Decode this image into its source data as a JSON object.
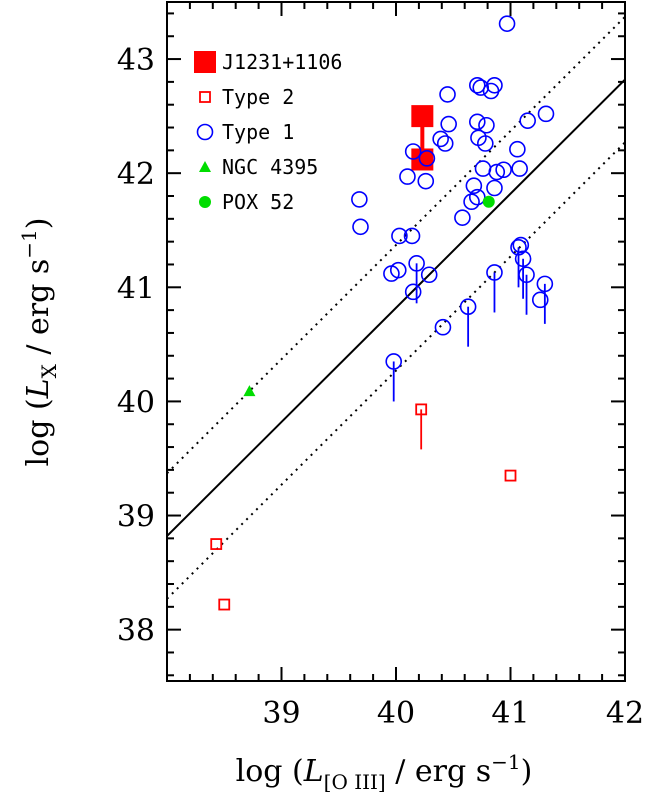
{
  "chart_data": {
    "type": "scatter",
    "xlabel": {
      "prefix": "log (",
      "symbol": "L",
      "sub": "[O III]",
      "suffix": " / erg s",
      "sup": "−1",
      "end": ")"
    },
    "ylabel": {
      "prefix": "log (",
      "symbol": "L",
      "sub": "X",
      "suffix": " / erg s",
      "sup": "−1",
      "end": ")"
    },
    "xlim": [
      38,
      42
    ],
    "ylim": [
      37.55,
      43.5
    ],
    "x_ticks": [
      39,
      40,
      41,
      42
    ],
    "y_ticks": [
      38,
      39,
      40,
      41,
      42,
      43
    ],
    "grid": false,
    "legend_position": "top-left",
    "colors": {
      "red": "#ff0000",
      "blue": "#0000ff",
      "green": "#00dd00",
      "black": "#000000"
    },
    "relation": {
      "slope": 1.0,
      "intercept": 0.82,
      "scatter": 0.55
    },
    "series": [
      {
        "name": "J1231+1106",
        "marker": "filled-square",
        "color": "#ff0000",
        "points": [
          {
            "x": 40.23,
            "y": 42.5
          },
          {
            "x": 40.23,
            "y": 42.12
          }
        ]
      },
      {
        "name": "Type 2",
        "marker": "open-square",
        "color": "#ff0000",
        "points": [
          {
            "x": 38.43,
            "y": 38.75
          },
          {
            "x": 38.5,
            "y": 38.22
          },
          {
            "x": 40.22,
            "y": 39.93,
            "upper_limit": true
          },
          {
            "x": 41.0,
            "y": 39.35
          }
        ]
      },
      {
        "name": "Type 1",
        "marker": "open-circle",
        "color": "#0000ff",
        "points": [
          {
            "x": 40.97,
            "y": 43.31
          },
          {
            "x": 40.45,
            "y": 42.69
          },
          {
            "x": 40.71,
            "y": 42.77
          },
          {
            "x": 40.74,
            "y": 42.75
          },
          {
            "x": 40.83,
            "y": 42.72
          },
          {
            "x": 40.86,
            "y": 42.77
          },
          {
            "x": 40.39,
            "y": 42.3
          },
          {
            "x": 40.43,
            "y": 42.26
          },
          {
            "x": 40.46,
            "y": 42.43
          },
          {
            "x": 40.71,
            "y": 42.45
          },
          {
            "x": 40.79,
            "y": 42.42
          },
          {
            "x": 40.72,
            "y": 42.31
          },
          {
            "x": 40.78,
            "y": 42.26
          },
          {
            "x": 41.15,
            "y": 42.46
          },
          {
            "x": 41.31,
            "y": 42.52
          },
          {
            "x": 40.15,
            "y": 42.19
          },
          {
            "x": 40.27,
            "y": 42.13
          },
          {
            "x": 40.1,
            "y": 41.97
          },
          {
            "x": 40.26,
            "y": 41.93
          },
          {
            "x": 40.76,
            "y": 42.04
          },
          {
            "x": 40.88,
            "y": 42.01
          },
          {
            "x": 40.94,
            "y": 42.03
          },
          {
            "x": 41.06,
            "y": 42.21
          },
          {
            "x": 41.08,
            "y": 42.04
          },
          {
            "x": 40.68,
            "y": 41.89
          },
          {
            "x": 40.86,
            "y": 41.87
          },
          {
            "x": 40.66,
            "y": 41.75
          },
          {
            "x": 40.71,
            "y": 41.79
          },
          {
            "x": 40.58,
            "y": 41.61
          },
          {
            "x": 39.68,
            "y": 41.77
          },
          {
            "x": 39.69,
            "y": 41.53
          },
          {
            "x": 40.03,
            "y": 41.45
          },
          {
            "x": 40.14,
            "y": 41.45
          },
          {
            "x": 40.18,
            "y": 41.21,
            "upper_limit": true
          },
          {
            "x": 39.96,
            "y": 41.12
          },
          {
            "x": 40.02,
            "y": 41.15
          },
          {
            "x": 40.29,
            "y": 41.11
          },
          {
            "x": 40.15,
            "y": 40.96
          },
          {
            "x": 40.41,
            "y": 40.65
          },
          {
            "x": 41.07,
            "y": 41.35,
            "upper_limit": true
          },
          {
            "x": 41.09,
            "y": 41.37
          },
          {
            "x": 41.11,
            "y": 41.25,
            "upper_limit": true
          },
          {
            "x": 41.14,
            "y": 41.11,
            "upper_limit": true
          },
          {
            "x": 40.86,
            "y": 41.13,
            "upper_limit": true
          },
          {
            "x": 41.3,
            "y": 41.03,
            "upper_limit": true
          },
          {
            "x": 41.26,
            "y": 40.89
          },
          {
            "x": 40.63,
            "y": 40.83,
            "upper_limit": true
          },
          {
            "x": 39.98,
            "y": 40.35,
            "upper_limit": true
          }
        ]
      },
      {
        "name": "NGC 4395",
        "marker": "filled-triangle",
        "color": "#00dd00",
        "points": [
          {
            "x": 38.72,
            "y": 40.09
          }
        ]
      },
      {
        "name": "POX 52",
        "marker": "filled-circle",
        "color": "#00dd00",
        "points": [
          {
            "x": 40.81,
            "y": 41.75
          }
        ]
      }
    ]
  }
}
